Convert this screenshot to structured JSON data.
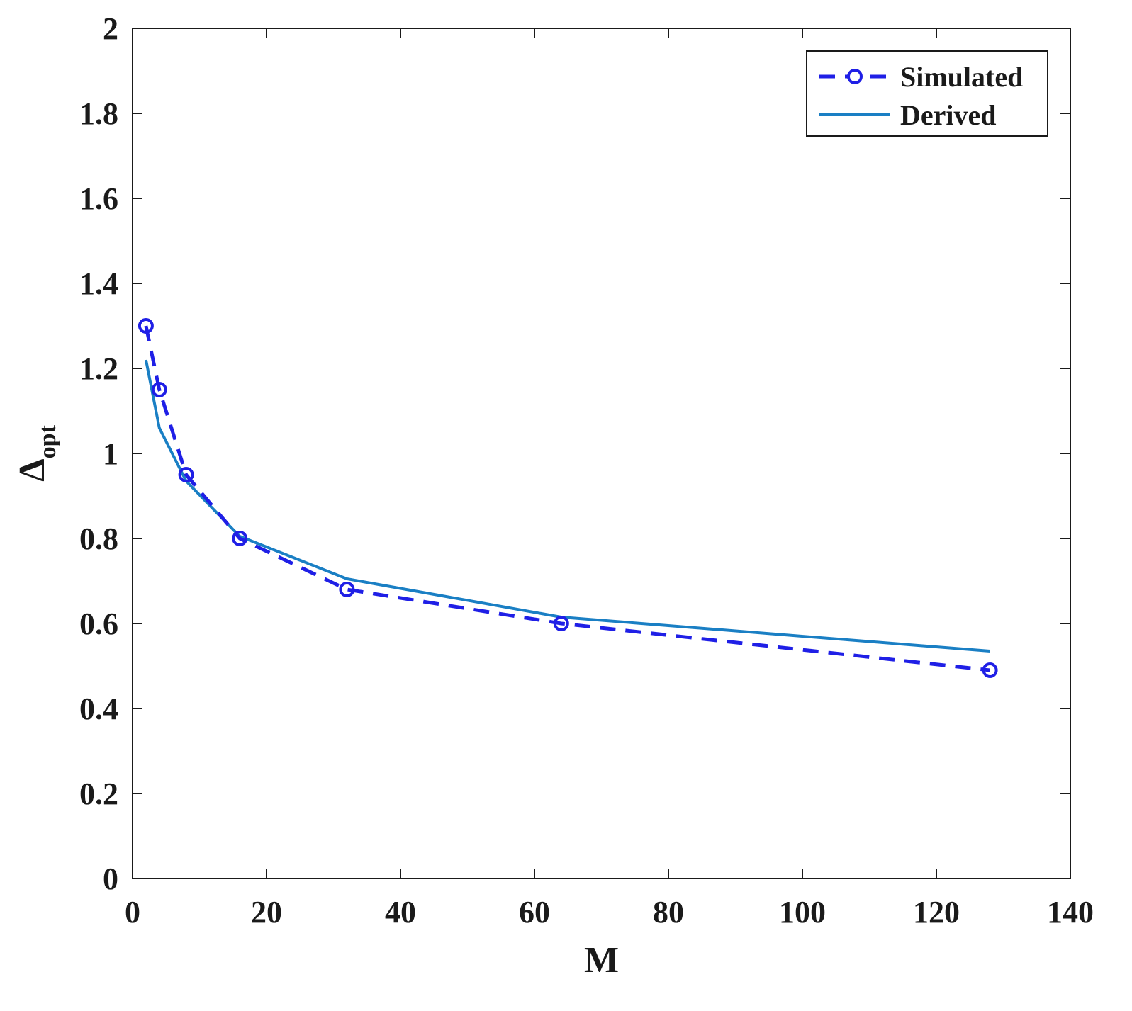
{
  "chart_data": {
    "type": "line",
    "xlabel": "M",
    "ylabel_main": "Δ",
    "ylabel_sub": "opt",
    "xlim": [
      0,
      140
    ],
    "ylim": [
      0,
      2
    ],
    "x_ticks": [
      0,
      20,
      40,
      60,
      80,
      100,
      120,
      140
    ],
    "y_ticks": [
      0,
      0.2,
      0.4,
      0.6,
      0.8,
      1,
      1.2,
      1.4,
      1.6,
      1.8,
      2
    ],
    "x_tick_labels": [
      "0",
      "20",
      "40",
      "60",
      "80",
      "100",
      "120",
      "140"
    ],
    "y_tick_labels": [
      "0",
      "0.2",
      "0.4",
      "0.6",
      "0.8",
      "1",
      "1.2",
      "1.4",
      "1.6",
      "1.8",
      "2"
    ],
    "grid": false,
    "legend_position": "top-right",
    "series": [
      {
        "name": "Simulated",
        "style": "dashed-circle",
        "color": "#1f1fe6",
        "x": [
          2,
          4,
          8,
          16,
          32,
          64,
          128
        ],
        "y": [
          1.3,
          1.15,
          0.95,
          0.8,
          0.68,
          0.6,
          0.49
        ]
      },
      {
        "name": "Derived",
        "style": "solid",
        "color": "#1a7fc4",
        "x": [
          2,
          4,
          8,
          16,
          32,
          64,
          128
        ],
        "y": [
          1.22,
          1.06,
          0.935,
          0.805,
          0.705,
          0.615,
          0.535
        ]
      }
    ]
  }
}
